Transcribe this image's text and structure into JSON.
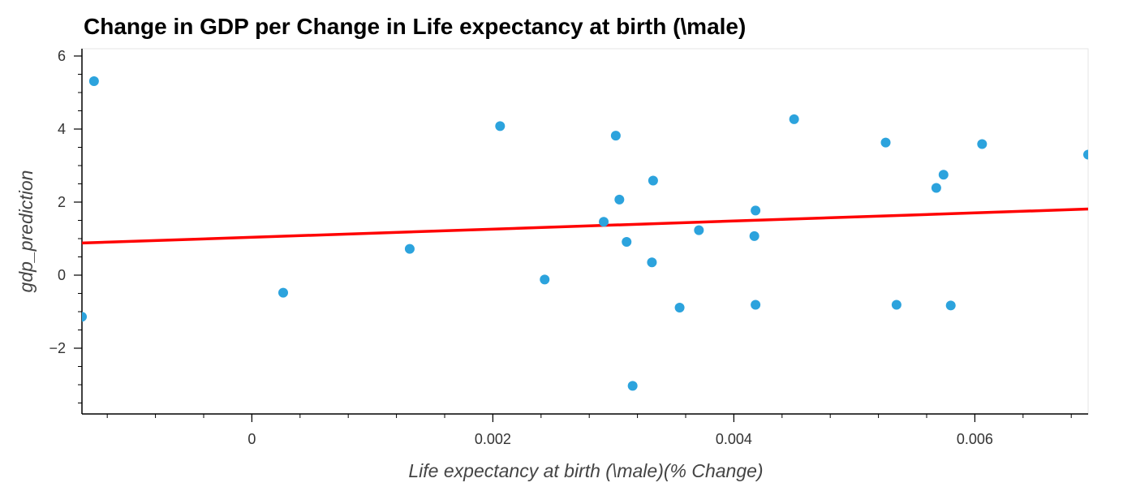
{
  "chart_data": {
    "type": "scatter",
    "title": "Change in GDP per Change in Life expectancy at birth (\\male)",
    "xlabel": "Life expectancy at birth (\\male)(% Change)",
    "ylabel": "gdp_prediction",
    "xlim": [
      -0.00141,
      0.00694
    ],
    "ylim": [
      -3.8,
      6.2
    ],
    "xticks": [
      0,
      0.002,
      0.004,
      0.006
    ],
    "xtick_labels": [
      "0",
      "0.002",
      "0.004",
      "0.006"
    ],
    "yticks": [
      -2,
      0,
      2,
      4,
      6
    ],
    "ytick_labels": [
      "−2",
      "0",
      "2",
      "4",
      "6"
    ],
    "grid": false,
    "legend": "none",
    "point_color": "#2ca3dd",
    "fit_color": "#ff0000",
    "points": [
      {
        "x": -0.00131,
        "y": 5.31
      },
      {
        "x": -0.00141,
        "y": -1.14
      },
      {
        "x": 0.00026,
        "y": -0.48
      },
      {
        "x": 0.00131,
        "y": 0.72
      },
      {
        "x": 0.00206,
        "y": 4.08
      },
      {
        "x": 0.00243,
        "y": -0.12
      },
      {
        "x": 0.00292,
        "y": 1.46
      },
      {
        "x": 0.00302,
        "y": 3.82
      },
      {
        "x": 0.00305,
        "y": 2.07
      },
      {
        "x": 0.00311,
        "y": 0.91
      },
      {
        "x": 0.00316,
        "y": -3.03
      },
      {
        "x": 0.00332,
        "y": 0.35
      },
      {
        "x": 0.00333,
        "y": 2.59
      },
      {
        "x": 0.00355,
        "y": -0.89
      },
      {
        "x": 0.00371,
        "y": 1.23
      },
      {
        "x": 0.00417,
        "y": 1.07
      },
      {
        "x": 0.00418,
        "y": 1.77
      },
      {
        "x": 0.00418,
        "y": -0.81
      },
      {
        "x": 0.0045,
        "y": 4.27
      },
      {
        "x": 0.00526,
        "y": 3.63
      },
      {
        "x": 0.00535,
        "y": -0.81
      },
      {
        "x": 0.00568,
        "y": 2.39
      },
      {
        "x": 0.00574,
        "y": 2.75
      },
      {
        "x": 0.0058,
        "y": -0.83
      },
      {
        "x": 0.00606,
        "y": 3.59
      },
      {
        "x": 0.00694,
        "y": 3.3
      }
    ],
    "fit_line": {
      "x": [
        -0.00141,
        0.00694
      ],
      "y": [
        0.88,
        1.81
      ]
    }
  }
}
